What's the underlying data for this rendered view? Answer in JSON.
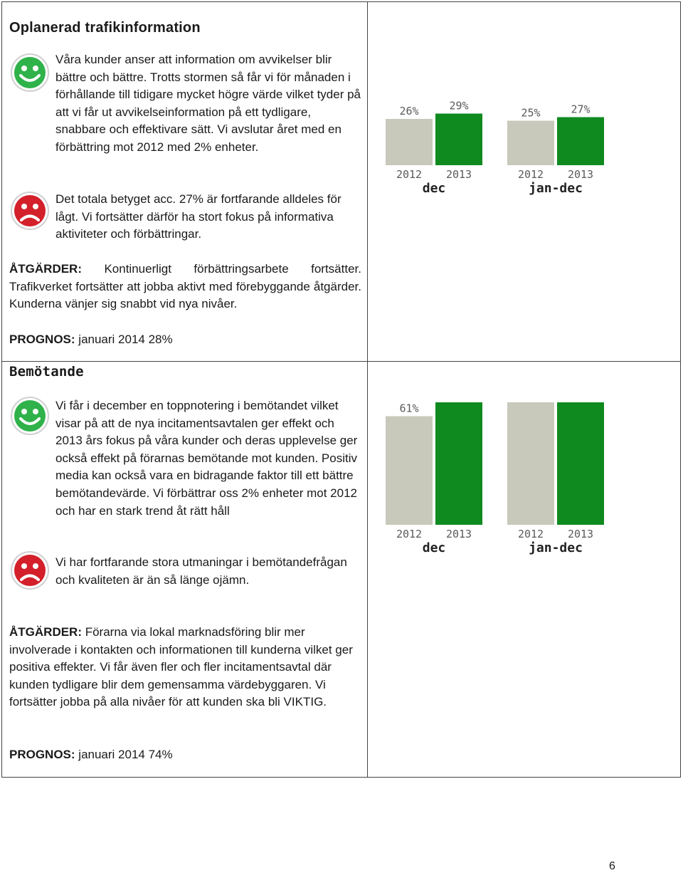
{
  "section1": {
    "title": "Oplanerad trafikinformation",
    "positive_text": "Våra kunder anser att information om avvikelser blir bättre och bättre. Trotts stormen så får vi för månaden i förhållande till tidigare mycket högre värde vilket tyder på att vi får ut avvikelseinformation på ett tydligare, snabbare och effektivare sätt. Vi avslutar året med en förbättring mot 2012 med 2% enheter.",
    "negative_text": "Det totala betyget acc. 27% är fortfarande alldeles för lågt. Vi fortsätter därför ha stort fokus på informativa aktiviteter och förbättringar.",
    "actions_label": "ÅTGÄRDER:",
    "actions_text": " Kontinuerligt förbättringsarbete fortsätter. Trafikverket fortsätter att jobba aktivt med förebyggande åtgärder. Kunderna vänjer sig snabbt vid nya nivåer.",
    "forecast_label": "PROGNOS:",
    "forecast_text": " januari 2014 28%"
  },
  "section2": {
    "title": "Bemötande",
    "positive_text": "Vi får i december en toppnotering i bemötandet vilket visar på att de nya incitamentsavtalen ger effekt och 2013 års fokus på våra kunder och deras upplevelse ger också effekt på förarnas bemötande mot kunden. Positiv media kan också vara en bidragande faktor till ett bättre bemötandevärde. Vi förbättrar oss 2% enheter mot 2012 och har en stark trend åt rätt håll",
    "negative_text": "Vi har fortfarande stora utmaningar i bemötandefrågan och kvaliteten är än så länge ojämn.",
    "actions_label": "ÅTGÄRDER:",
    "actions_text": " Förarna via lokal marknadsföring blir mer involverade i kontakten och informationen till kunderna vilket ger positiva effekter. Vi får även fler och fler incitamentsavtal där kunden tydligare blir dem gemensamma värdebyggaren. Vi fortsätter jobba på alla nivåer för att kunden ska bli VIKTIG.",
    "forecast_label": "PROGNOS:",
    "forecast_text": " januari 2014 74%"
  },
  "page_number": "6",
  "icons": {
    "positive": "happy-smiley-icon",
    "negative": "sad-smiley-icon"
  },
  "colors": {
    "bar_2012": "#c8c9bb",
    "bar_2013": "#0f8a1f",
    "smiley_green": "#2fb24a",
    "smiley_red": "#d3202a"
  },
  "chart_data": [
    {
      "type": "bar",
      "groups": [
        "dec",
        "jan-dec"
      ],
      "categories": [
        "2012",
        "2013"
      ],
      "series": [
        {
          "values": [
            26,
            29
          ]
        },
        {
          "values": [
            25,
            27
          ]
        }
      ],
      "data_labels": [
        [
          "26%",
          "29%"
        ],
        [
          "25%",
          "27%"
        ]
      ],
      "ylim": [
        0,
        100
      ]
    },
    {
      "type": "bar",
      "groups": [
        "dec",
        "jan-dec"
      ],
      "categories": [
        "2012",
        "2013"
      ],
      "series": [
        {
          "values": [
            61,
            75
          ]
        },
        {
          "values": [
            69,
            71
          ]
        }
      ],
      "data_labels": [
        [
          "61%",
          "75%"
        ],
        [
          "69%",
          "71%"
        ]
      ],
      "ylim": [
        0,
        100
      ]
    }
  ]
}
